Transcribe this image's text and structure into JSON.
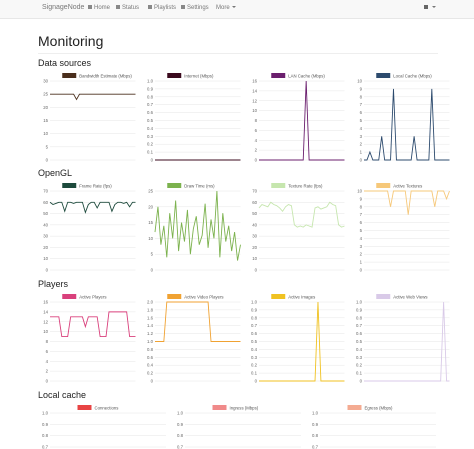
{
  "navbar": {
    "brand": "SignageNode",
    "links": [
      "Home",
      "Status",
      "Playlists",
      "Settings",
      "More"
    ]
  },
  "page_title": "Monitoring",
  "sections": [
    {
      "title": "Data sources",
      "charts": [
        {
          "type": "line",
          "series": [
            {
              "name": "Bandwidth Estimate (Mbps)",
              "color": "#4a2e1c",
              "values": [
                25,
                25,
                25,
                25,
                25,
                25,
                25,
                25,
                25,
                23,
                25,
                25,
                25,
                25,
                25,
                25,
                25,
                25,
                25,
                25,
                25,
                25,
                25,
                25,
                25,
                25,
                25,
                25,
                25,
                25
              ]
            }
          ],
          "ylim": [
            0,
            30
          ],
          "yticks": [
            0,
            5,
            10,
            15,
            20,
            25,
            30
          ]
        },
        {
          "type": "line",
          "series": [
            {
              "name": "Internet (Mbps)",
              "color": "#3b0a1e",
              "values": [
                0,
                0,
                0,
                0,
                0,
                0,
                0,
                0,
                0,
                0,
                0,
                0,
                0,
                0,
                0,
                0,
                0,
                0,
                0,
                0,
                0,
                0,
                0,
                0,
                0,
                0,
                0,
                0,
                0,
                0
              ]
            }
          ],
          "ylim": [
            0,
            1
          ],
          "yticks": [
            0,
            0.1,
            0.2,
            0.3,
            0.4,
            0.5,
            0.6,
            0.7,
            0.8,
            0.9,
            {
              "value": 1,
              "label": "1.0"
            }
          ]
        },
        {
          "type": "line",
          "series": [
            {
              "name": "LAN Cache (Mbps)",
              "color": "#6b1f6e",
              "values": [
                0,
                0,
                0,
                0,
                0,
                0,
                0,
                0,
                0,
                0,
                0,
                0,
                0,
                0,
                0,
                0,
                16,
                0,
                0,
                0,
                0,
                0,
                0,
                0,
                0,
                0,
                0,
                0,
                0,
                0
              ]
            }
          ],
          "ylim": [
            0,
            16
          ],
          "yticks": [
            0,
            2,
            4,
            6,
            8,
            10,
            12,
            14,
            16
          ]
        },
        {
          "type": "line",
          "series": [
            {
              "name": "Local Cache (Mbps)",
              "color": "#2d4b6e",
              "values": [
                0,
                0,
                1,
                0,
                0,
                0,
                3,
                0,
                0,
                0,
                9,
                0,
                0,
                0,
                0,
                0,
                0,
                3,
                0,
                0,
                0,
                0,
                0,
                9,
                0,
                0,
                0,
                0,
                0,
                0
              ]
            }
          ],
          "ylim": [
            0,
            10
          ],
          "yticks": [
            0,
            1,
            2,
            3,
            4,
            5,
            6,
            7,
            8,
            9,
            10
          ]
        }
      ]
    },
    {
      "title": "OpenGL",
      "charts": [
        {
          "type": "line",
          "series": [
            {
              "name": "Frame Rate (fps)",
              "color": "#1d4a3c",
              "values": [
                60,
                58,
                59,
                60,
                60,
                52,
                60,
                60,
                59,
                60,
                60,
                60,
                51,
                58,
                60,
                60,
                55,
                60,
                60,
                60,
                60,
                52,
                58,
                60,
                60,
                59,
                60,
                56,
                60,
                60
              ]
            }
          ],
          "ylim": [
            0,
            70
          ],
          "yticks": [
            0,
            10,
            20,
            30,
            40,
            50,
            60,
            70
          ]
        },
        {
          "type": "line",
          "series": [
            {
              "name": "Draw Time (ms)",
              "color": "#7cb24e",
              "values": [
                12,
                20,
                8,
                14,
                4,
                18,
                10,
                22,
                6,
                15,
                9,
                19,
                5,
                13,
                17,
                8,
                11,
                21,
                7,
                16,
                10,
                25,
                4,
                18,
                9,
                14,
                6,
                12,
                3,
                8
              ]
            }
          ],
          "ylim": [
            0,
            25
          ],
          "yticks": [
            0,
            5,
            10,
            15,
            20,
            25
          ]
        },
        {
          "type": "line",
          "series": [
            {
              "name": "Texture Rate (fps)",
              "color": "#c6e6ae",
              "values": [
                55,
                58,
                57,
                56,
                60,
                58,
                57,
                55,
                52,
                56,
                58,
                57,
                40,
                38,
                39,
                38,
                40,
                39,
                38,
                55,
                56,
                54,
                55,
                56,
                60,
                58,
                57,
                40,
                38,
                39
              ]
            }
          ],
          "ylim": [
            0,
            70
          ],
          "yticks": [
            0,
            10,
            20,
            30,
            40,
            50,
            60,
            70
          ]
        },
        {
          "type": "line",
          "series": [
            {
              "name": "Active Textures",
              "color": "#f6c87a",
              "values": [
                10,
                10,
                10,
                10,
                10,
                10,
                10,
                10,
                10,
                8,
                10,
                10,
                10,
                10,
                10,
                7,
                10,
                10,
                10,
                10,
                10,
                10,
                10,
                10,
                8,
                10,
                10,
                10,
                9,
                10
              ]
            }
          ],
          "ylim": [
            0,
            10
          ],
          "yticks": [
            0,
            1,
            2,
            3,
            4,
            5,
            6,
            7,
            8,
            9,
            10
          ]
        }
      ]
    },
    {
      "title": "Players",
      "charts": [
        {
          "type": "line",
          "series": [
            {
              "name": "Active Players",
              "color": "#d9407c",
              "values": [
                13,
                13,
                13,
                13,
                9,
                9,
                9,
                13,
                13,
                13,
                13,
                13,
                11,
                13,
                13,
                13,
                13,
                9,
                9,
                9,
                14,
                14,
                14,
                14,
                14,
                14,
                14,
                9,
                9,
                9
              ]
            }
          ],
          "ylim": [
            0,
            16
          ],
          "yticks": [
            0,
            2,
            4,
            6,
            8,
            10,
            12,
            14,
            16
          ]
        },
        {
          "type": "line",
          "series": [
            {
              "name": "Active Video Players",
              "color": "#f0a232",
              "values": [
                1,
                1,
                1,
                1,
                2,
                2,
                2,
                2,
                2,
                2,
                2,
                2,
                2,
                2,
                2,
                2,
                2,
                2,
                2,
                1,
                1,
                1,
                1,
                1,
                1,
                1,
                1,
                1,
                1,
                1
              ]
            }
          ],
          "ylim": [
            0,
            2
          ],
          "yticks": [
            0,
            0.2,
            0.4,
            0.6,
            0.8,
            {
              "value": 1,
              "label": "1.0"
            },
            1.2,
            1.4,
            1.6,
            1.8,
            {
              "value": 2,
              "label": "2.0"
            }
          ]
        },
        {
          "type": "line",
          "series": [
            {
              "name": "Active Images",
              "color": "#f0c222",
              "values": [
                0,
                0,
                0,
                0,
                0,
                0,
                0,
                0,
                0,
                0,
                0,
                0,
                0,
                0,
                0,
                0,
                0,
                0,
                0,
                0,
                1,
                0,
                0,
                0,
                0,
                0,
                0,
                0,
                0,
                0
              ]
            }
          ],
          "ylim": [
            0,
            1
          ],
          "yticks": [
            0,
            0.1,
            0.2,
            0.3,
            0.4,
            0.5,
            0.6,
            0.7,
            0.8,
            0.9,
            {
              "value": 1,
              "label": "1.0"
            }
          ]
        },
        {
          "type": "line",
          "series": [
            {
              "name": "Active Web Views",
              "color": "#d9cae8",
              "values": [
                0,
                0,
                0,
                0,
                0,
                0,
                0,
                0,
                0,
                0,
                0,
                0,
                0,
                0,
                0,
                0,
                0,
                0,
                0,
                0,
                0,
                0,
                0,
                0,
                0,
                0,
                0,
                1,
                0,
                0
              ]
            }
          ],
          "ylim": [
            0,
            1
          ],
          "yticks": [
            0,
            0.1,
            0.2,
            0.3,
            0.4,
            0.5,
            0.6,
            0.7,
            0.8,
            0.9,
            {
              "value": 1,
              "label": "1.0"
            }
          ]
        }
      ]
    },
    {
      "title": "Local cache",
      "charts": [
        {
          "type": "line",
          "series": [
            {
              "name": "Connections",
              "color": "#e84444"
            }
          ],
          "ylim": [
            0.7,
            1
          ],
          "yticks": [
            0.7,
            0.8,
            0.9,
            {
              "value": 1,
              "label": "1.0"
            }
          ]
        },
        {
          "type": "line",
          "series": [
            {
              "name": "Ingress (Mbps)",
              "color": "#f08a8a"
            }
          ],
          "ylim": [
            0.7,
            1
          ],
          "yticks": [
            0.7,
            0.8,
            0.9,
            {
              "value": 1,
              "label": "1.0"
            }
          ]
        },
        {
          "type": "line",
          "series": [
            {
              "name": "Egress (Mbps)",
              "color": "#f4ab92"
            }
          ],
          "ylim": [
            0.7,
            1
          ],
          "yticks": [
            0.7,
            0.8,
            0.9,
            {
              "value": 1,
              "label": "1.0"
            }
          ]
        }
      ]
    }
  ]
}
